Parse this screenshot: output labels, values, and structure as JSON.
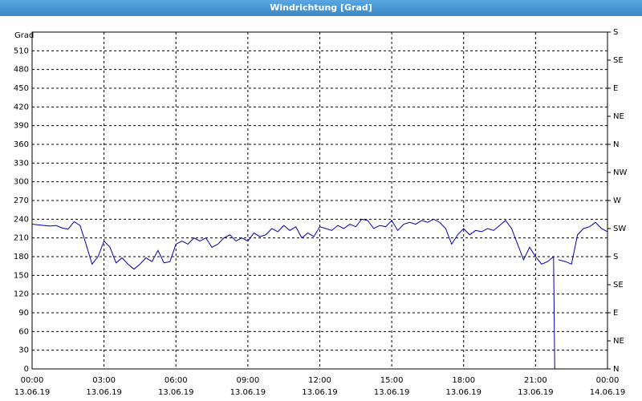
{
  "chart_data": {
    "type": "line",
    "title": "Windrichtung [Grad]",
    "y_label": "Grad",
    "x": [
      0,
      0.25,
      0.5,
      0.75,
      1,
      1.25,
      1.5,
      1.75,
      2,
      2.25,
      2.5,
      2.75,
      3,
      3.25,
      3.5,
      3.75,
      4,
      4.25,
      4.5,
      4.75,
      5,
      5.25,
      5.5,
      5.75,
      6,
      6.25,
      6.5,
      6.75,
      7,
      7.25,
      7.5,
      7.75,
      8,
      8.25,
      8.5,
      8.75,
      9,
      9.25,
      9.5,
      9.75,
      10,
      10.25,
      10.5,
      10.75,
      11,
      11.25,
      11.5,
      11.75,
      12,
      12.25,
      12.5,
      12.75,
      13,
      13.25,
      13.5,
      13.75,
      14,
      14.25,
      14.5,
      14.75,
      15,
      15.25,
      15.5,
      15.75,
      16,
      16.25,
      16.5,
      16.75,
      17,
      17.25,
      17.5,
      17.75,
      18,
      18.25,
      18.5,
      18.75,
      19,
      19.25,
      19.5,
      19.75,
      20,
      20.25,
      20.5,
      20.75,
      21,
      21.25,
      21.5,
      21.75,
      21.8,
      21.85,
      21.95,
      22.25,
      22.5,
      22.75,
      23,
      23.25,
      23.5,
      23.75,
      24
    ],
    "series": [
      {
        "name": "Windrichtung",
        "color": "#0000aa",
        "values": [
          232,
          231,
          230,
          229,
          230,
          226,
          224,
          236,
          230,
          200,
          168,
          180,
          205,
          195,
          170,
          178,
          168,
          160,
          168,
          178,
          172,
          190,
          170,
          172,
          200,
          205,
          200,
          210,
          205,
          210,
          195,
          200,
          210,
          215,
          205,
          210,
          205,
          218,
          212,
          215,
          225,
          220,
          230,
          222,
          228,
          210,
          218,
          212,
          228,
          225,
          222,
          230,
          225,
          232,
          228,
          240,
          238,
          225,
          230,
          228,
          238,
          222,
          232,
          235,
          232,
          238,
          235,
          240,
          235,
          225,
          200,
          215,
          225,
          215,
          222,
          220,
          225,
          222,
          230,
          238,
          225,
          200,
          175,
          195,
          180,
          168,
          172,
          180,
          0,
          null,
          175,
          172,
          168,
          215,
          225,
          228,
          235,
          225,
          220
        ]
      }
    ],
    "xlim": [
      0,
      24
    ],
    "xticks": [
      {
        "value": 0,
        "label": "00:00",
        "date": "13.06.19"
      },
      {
        "value": 3,
        "label": "03:00",
        "date": "13.06.19"
      },
      {
        "value": 6,
        "label": "06:00",
        "date": "13.06.19"
      },
      {
        "value": 9,
        "label": "09:00",
        "date": "13.06.19"
      },
      {
        "value": 12,
        "label": "12:00",
        "date": "13.06.19"
      },
      {
        "value": 15,
        "label": "15:00",
        "date": "13.06.19"
      },
      {
        "value": 18,
        "label": "18:00",
        "date": "13.06.19"
      },
      {
        "value": 21,
        "label": "21:00",
        "date": "13.06.19"
      },
      {
        "value": 24,
        "label": "00:00",
        "date": "14.06.19"
      }
    ],
    "ylim": [
      0,
      540
    ],
    "yticks": [
      0,
      30,
      60,
      90,
      120,
      150,
      180,
      210,
      240,
      270,
      300,
      330,
      360,
      390,
      420,
      450,
      480,
      510
    ],
    "y2lim": [
      0,
      540
    ],
    "y2ticks": [
      {
        "value": 0,
        "label": "N"
      },
      {
        "value": 45,
        "label": "NE"
      },
      {
        "value": 90,
        "label": "E"
      },
      {
        "value": 135,
        "label": "SE"
      },
      {
        "value": 180,
        "label": "S"
      },
      {
        "value": 225,
        "label": "SW"
      },
      {
        "value": 270,
        "label": "W"
      },
      {
        "value": 315,
        "label": "NW"
      },
      {
        "value": 360,
        "label": "N"
      },
      {
        "value": 405,
        "label": "NE"
      },
      {
        "value": 450,
        "label": "E"
      },
      {
        "value": 495,
        "label": "SE"
      },
      {
        "value": 540,
        "label": "S"
      }
    ],
    "grid": true
  }
}
